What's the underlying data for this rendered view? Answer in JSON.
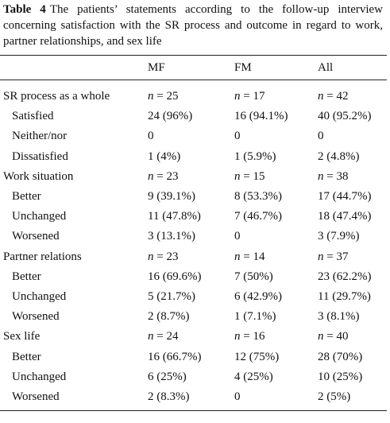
{
  "caption": {
    "label": "Table 4",
    "text": "The patients’ statements according to the follow-up interview concerning satisfaction with the SR process and outcome in regard to work, partner relationships, and sex life"
  },
  "table": {
    "header": [
      "MF",
      "FM",
      "All"
    ],
    "groups": [
      {
        "label": "SR process as a whole",
        "values": [
          "n = 25",
          "n = 17",
          "n = 42"
        ],
        "rows": [
          {
            "label": "Satisfied",
            "values": [
              "24 (96%)",
              "16 (94.1%)",
              "40 (95.2%)"
            ]
          },
          {
            "label": "Neither/nor",
            "values": [
              "0",
              "0",
              "0"
            ]
          },
          {
            "label": "Dissatisfied",
            "values": [
              "1 (4%)",
              "1 (5.9%)",
              "2 (4.8%)"
            ]
          }
        ]
      },
      {
        "label": "Work situation",
        "values": [
          "n = 23",
          "n = 15",
          "n = 38"
        ],
        "rows": [
          {
            "label": "Better",
            "values": [
              "9 (39.1%)",
              "8 (53.3%)",
              "17 (44.7%)"
            ]
          },
          {
            "label": "Unchanged",
            "values": [
              "11 (47.8%)",
              "7 (46.7%)",
              "18 (47.4%)"
            ]
          },
          {
            "label": "Worsened",
            "values": [
              "3 (13.1%)",
              "0",
              "3 (7.9%)"
            ]
          }
        ]
      },
      {
        "label": "Partner relations",
        "values": [
          "n = 23",
          "n = 14",
          "n = 37"
        ],
        "rows": [
          {
            "label": "Better",
            "values": [
              "16 (69.6%)",
              "7 (50%)",
              "23 (62.2%)"
            ]
          },
          {
            "label": "Unchanged",
            "values": [
              "5 (21.7%)",
              "6 (42.9%)",
              "11 (29.7%)"
            ]
          },
          {
            "label": "Worsened",
            "values": [
              "2 (8.7%)",
              "1 (7.1%)",
              "3 (8.1%)"
            ]
          }
        ]
      },
      {
        "label": "Sex life",
        "values": [
          "n = 24",
          "n = 16",
          "n = 40"
        ],
        "rows": [
          {
            "label": "Better",
            "values": [
              "16 (66.7%)",
              "12 (75%)",
              "28 (70%)"
            ]
          },
          {
            "label": "Unchanged",
            "values": [
              "6 (25%)",
              "4 (25%)",
              "10 (25%)"
            ]
          },
          {
            "label": "Worsened",
            "values": [
              "2 (8.3%)",
              "0",
              "2 (5%)"
            ]
          }
        ]
      }
    ]
  }
}
